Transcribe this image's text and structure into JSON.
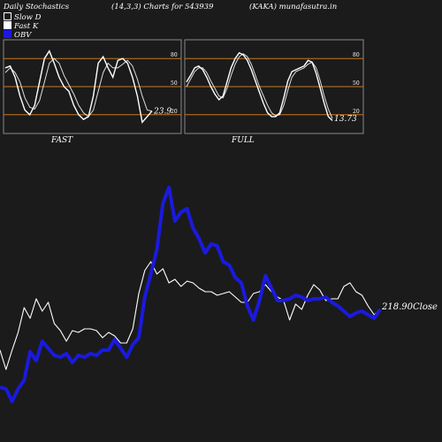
{
  "header": {
    "title": "Daily Stochastics",
    "params": "(14,3,3) Charts for 543939",
    "symbol": "(KAKA) munafasutra.in"
  },
  "legend": {
    "slow_d": "Slow D",
    "fast_k": "Fast K",
    "obv": "OBV"
  },
  "colors": {
    "background": "#1b1b1b",
    "panel_border": "#888888",
    "level_line": "#c8781e",
    "white_line": "#ffffff",
    "obv_line": "#1a1adf"
  },
  "chart_data": [
    {
      "type": "line",
      "panel": "FAST",
      "label": "FAST",
      "levels": [
        80,
        50,
        20
      ],
      "level_labels": [
        "80",
        "50",
        "20"
      ],
      "ylim": [
        0,
        100
      ],
      "last_value_label": "23.9",
      "series": [
        {
          "name": "Fast K",
          "values": [
            70,
            72,
            60,
            40,
            25,
            20,
            30,
            55,
            80,
            88,
            75,
            60,
            50,
            45,
            30,
            20,
            15,
            18,
            40,
            75,
            82,
            70,
            60,
            78,
            80,
            75,
            60,
            40,
            12,
            18,
            24
          ]
        },
        {
          "name": "Slow D",
          "values": [
            65,
            70,
            65,
            55,
            38,
            28,
            26,
            35,
            55,
            75,
            80,
            75,
            62,
            52,
            42,
            30,
            22,
            18,
            25,
            45,
            65,
            75,
            70,
            70,
            74,
            78,
            72,
            58,
            40,
            25,
            23.9
          ]
        }
      ]
    },
    {
      "type": "line",
      "panel": "FULL",
      "label": "FULL",
      "levels": [
        80,
        50,
        20
      ],
      "level_labels": [
        "80",
        "50",
        "20"
      ],
      "ylim": [
        0,
        100
      ],
      "last_value_label": "13.73",
      "series": [
        {
          "name": "Full K",
          "values": [
            55,
            62,
            70,
            72,
            68,
            60,
            50,
            42,
            36,
            40,
            55,
            70,
            80,
            86,
            84,
            78,
            68,
            56,
            44,
            32,
            22,
            18,
            18,
            22,
            38,
            56,
            66,
            68,
            70,
            72,
            78,
            76,
            64,
            48,
            32,
            18,
            13.73
          ]
        },
        {
          "name": "Full D",
          "values": [
            50,
            58,
            66,
            70,
            70,
            65,
            56,
            48,
            40,
            38,
            48,
            62,
            74,
            82,
            85,
            82,
            74,
            62,
            50,
            40,
            30,
            22,
            19,
            20,
            30,
            46,
            60,
            66,
            68,
            70,
            74,
            76,
            70,
            56,
            40,
            26,
            16
          ]
        }
      ]
    },
    {
      "type": "line",
      "panel": "price_obv",
      "last_price_label": "218.90",
      "last_price_suffix": "Close",
      "series": [
        {
          "name": "Close",
          "values": [
            396,
            418,
            396,
            376,
            348,
            360,
            338,
            352,
            342,
            366,
            374,
            386,
            374,
            376,
            372,
            372,
            374,
            382,
            376,
            380,
            388,
            388,
            372,
            332,
            306,
            296,
            310,
            304,
            320,
            316,
            324,
            318,
            320,
            326,
            330,
            330,
            334,
            332,
            330,
            336,
            342,
            342,
            332,
            330,
            322,
            330,
            336,
            340,
            362,
            344,
            350,
            334,
            322,
            328,
            340,
            338,
            338,
            324,
            320,
            330,
            334,
            346,
            356,
            350
          ]
        },
        {
          "name": "OBV",
          "values": [
            438,
            440,
            454,
            440,
            430,
            398,
            408,
            386,
            394,
            402,
            404,
            400,
            410,
            402,
            404,
            400,
            402,
            396,
            396,
            384,
            394,
            404,
            390,
            382,
            336,
            310,
            282,
            230,
            212,
            250,
            240,
            236,
            258,
            270,
            286,
            276,
            278,
            296,
            300,
            314,
            320,
            346,
            362,
            340,
            312,
            326,
            340,
            340,
            338,
            334,
            336,
            340,
            338,
            338,
            336,
            342,
            346,
            352,
            358,
            354,
            352,
            356,
            360,
            350
          ]
        }
      ]
    }
  ]
}
